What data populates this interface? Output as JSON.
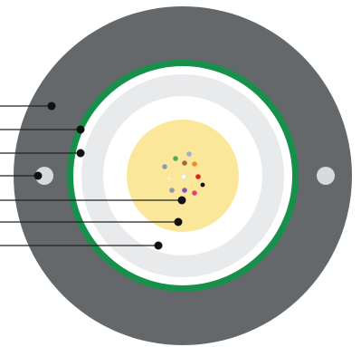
{
  "diagram": {
    "type": "cable-cross-section",
    "colors": {
      "outer_sheath": "#64686a",
      "green_ring": "#16904a",
      "white_ring": "#ffffff",
      "light_gray_ring": "#e9eaec",
      "inner_white_ring": "#ffffff",
      "core_yellow": "#fbe799",
      "strength_member": "#d8dadc",
      "leader_line": "#222222",
      "leader_dot": "#111111"
    },
    "fibers": [
      {
        "name": "fiber-green",
        "color": "#4caf50"
      },
      {
        "name": "fiber-blue-gray",
        "color": "#9fb0c9"
      },
      {
        "name": "fiber-orange",
        "color": "#f28c28"
      },
      {
        "name": "fiber-slate",
        "color": "#8a9bb8"
      },
      {
        "name": "fiber-brown",
        "color": "#9b6a3c"
      },
      {
        "name": "fiber-white",
        "color": "#ffffff"
      },
      {
        "name": "fiber-red",
        "color": "#e2231a"
      },
      {
        "name": "fiber-yellow-light",
        "color": "#f6f0c8"
      },
      {
        "name": "fiber-black",
        "color": "#111111"
      },
      {
        "name": "fiber-gray",
        "color": "#8e9aa6"
      },
      {
        "name": "fiber-violet",
        "color": "#7e57c2"
      },
      {
        "name": "fiber-pink",
        "color": "#e0407a"
      }
    ],
    "leaders": [
      {
        "name": "leader-outer-sheath"
      },
      {
        "name": "leader-green-jacket"
      },
      {
        "name": "leader-white-ring"
      },
      {
        "name": "leader-strength-member"
      },
      {
        "name": "leader-fiber-bundle"
      },
      {
        "name": "leader-core"
      },
      {
        "name": "leader-inner-ring"
      }
    ]
  }
}
